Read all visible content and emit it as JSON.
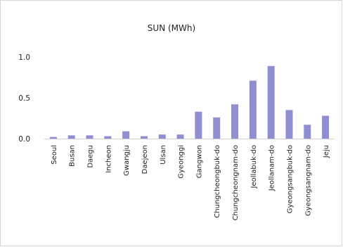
{
  "chart_data": {
    "type": "bar",
    "title": "SUN (MWh)",
    "xlabel": "",
    "ylabel": "",
    "ylim": [
      0,
      1.0
    ],
    "yticks": [
      "0.0",
      "0.5",
      "1.0"
    ],
    "ytick_values": [
      0.0,
      0.5,
      1.0
    ],
    "grid": false,
    "legend": "none",
    "bar_color": "#8e8ed0",
    "categories": [
      "Seoul",
      "Busan",
      "Daegu",
      "Incheon",
      "Gwangju",
      "Daejeon",
      "Ulsan",
      "Gyeonggi",
      "Gangwon",
      "Chungcheongbuk-do",
      "Chungcheongnam-do",
      "Jeollabuk-do",
      "Jeollanam-do",
      "Gyeongsangbuk-do",
      "Gyeongsangnam-do",
      "Jeju"
    ],
    "values": [
      0.02,
      0.04,
      0.04,
      0.03,
      0.09,
      0.03,
      0.05,
      0.05,
      0.33,
      0.26,
      0.42,
      0.71,
      0.89,
      0.35,
      0.17,
      0.28
    ]
  }
}
